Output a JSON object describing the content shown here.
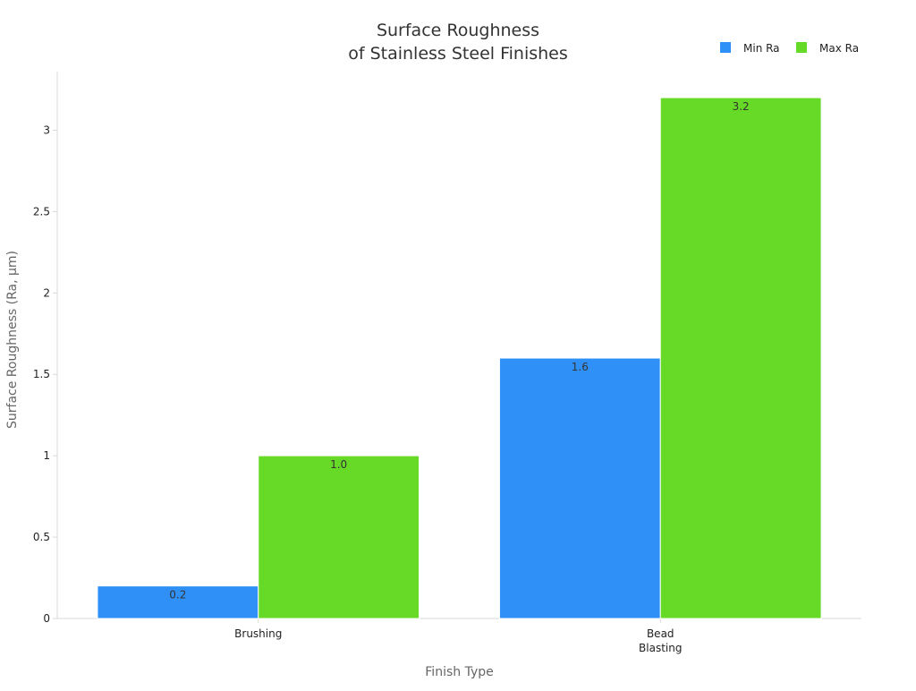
{
  "chart_data": {
    "type": "bar",
    "title_lines": [
      "Surface Roughness",
      "of Stainless Steel Finishes"
    ],
    "xlabel": "Finish Type",
    "ylabel": "Surface Roughness (Ra, μm)",
    "categories": [
      [
        "Brushing"
      ],
      [
        "Bead",
        "Blasting"
      ]
    ],
    "series": [
      {
        "name": "Min Ra",
        "values": [
          0.2,
          1.6
        ],
        "labels": [
          "0.2",
          "1.6"
        ],
        "color": "#2f91f8"
      },
      {
        "name": "Max Ra",
        "values": [
          1.0,
          3.2
        ],
        "labels": [
          "1.0",
          "3.2"
        ],
        "color": "#66da26"
      }
    ],
    "ylim": [
      0,
      3.36
    ],
    "yticks": [
      0,
      0.5,
      1,
      1.5,
      2,
      2.5,
      3
    ],
    "ytick_labels": [
      "0",
      "0.5",
      "1",
      "1.5",
      "2",
      "2.5",
      "3"
    ],
    "legend_position": "top-right",
    "grid": false,
    "colors": {
      "axis": "#d9d9d9",
      "title": "#333333",
      "axis_label": "#666666",
      "tick_label": "#222222",
      "data_label": "#333333"
    }
  }
}
